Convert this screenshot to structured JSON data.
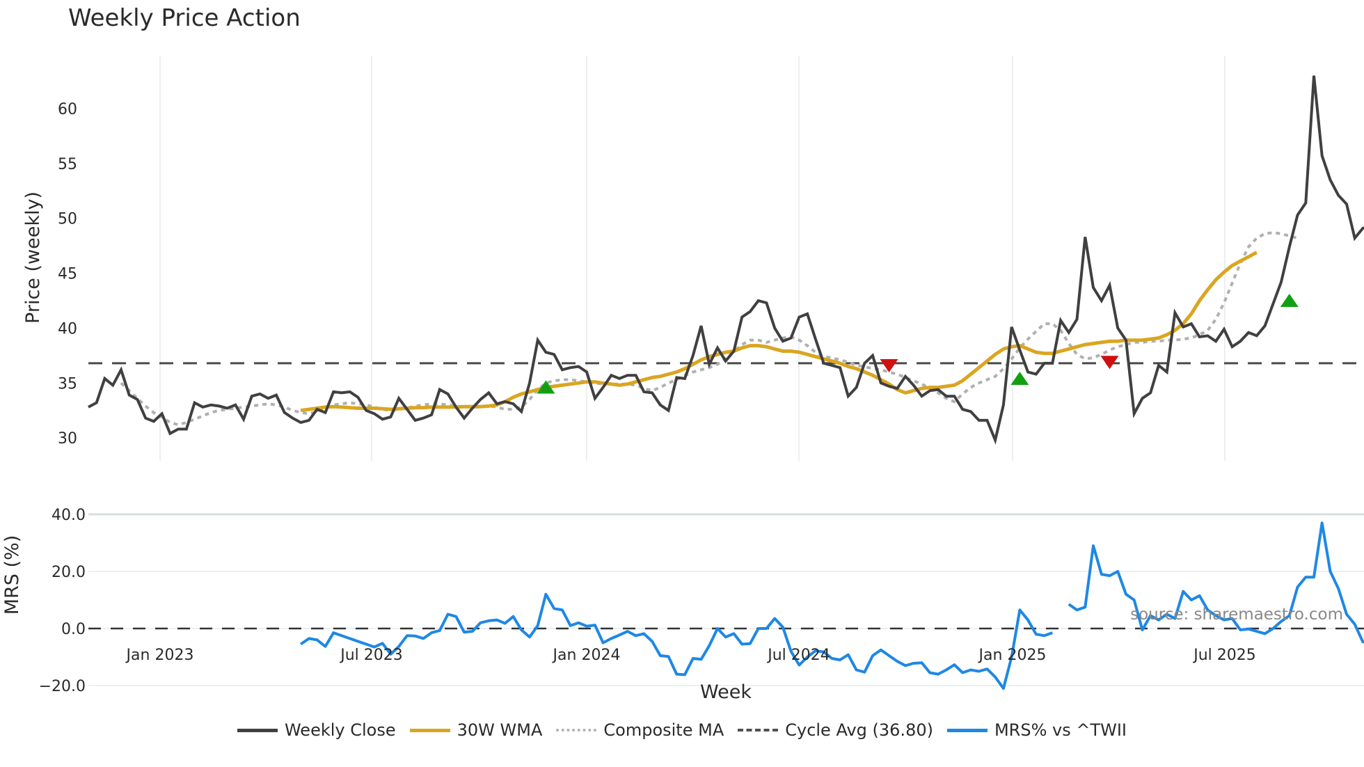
{
  "title": "Weekly Price Action",
  "source": "source: sharemaestro.com",
  "axes": {
    "price_ylabel": "Price (weekly)",
    "mrs_ylabel": "MRS (%)",
    "xlabel": "Week",
    "price_yticks": [
      "30",
      "35",
      "40",
      "45",
      "50",
      "55",
      "60"
    ],
    "mrs_yticks": [
      "−20.0",
      "0.0",
      "20.0",
      "40.0"
    ],
    "xticks": [
      "Jan 2023",
      "Jul 2023",
      "Jan 2024",
      "Jul 2024",
      "Jan 2025",
      "Jul 2025"
    ]
  },
  "legend": [
    {
      "label": "Weekly Close",
      "color": "#404040",
      "style": "solid"
    },
    {
      "label": "30W WMA",
      "color": "#DAA520",
      "style": "solid"
    },
    {
      "label": "Composite MA",
      "color": "#B0B0B0",
      "style": "dotted"
    },
    {
      "label": "Cycle Avg (36.80)",
      "color": "#505050",
      "style": "dashed"
    },
    {
      "label": "MRS% vs ^TWII",
      "color": "#1E88E5",
      "style": "solid"
    }
  ],
  "colors": {
    "close": "#404040",
    "wma": "#DAA520",
    "composite": "#B0B0B0",
    "cycle": "#4a4a4a",
    "mrs": "#1E88E5",
    "buy": "#12A012",
    "sell": "#D01010",
    "grid": "#ECEFF2"
  },
  "chart_data": [
    {
      "type": "line",
      "title": "Weekly Price Action",
      "xlabel": "",
      "ylabel": "Price (weekly)",
      "ylim": [
        27.5,
        64.5
      ],
      "x_start": "2022-11-04",
      "x_ticks": [
        "Jan 2023",
        "Jul 2023",
        "Jan 2024",
        "Jul 2024",
        "Jan 2025",
        "Jul 2025"
      ],
      "grid": true,
      "series": [
        {
          "name": "Weekly Close",
          "values": [
            32.8,
            33.2,
            35.4,
            34.8,
            36.2,
            33.9,
            33.5,
            31.8,
            31.5,
            32.2,
            30.4,
            30.8,
            30.8,
            33.2,
            32.8,
            33.0,
            32.9,
            32.7,
            33.0,
            31.7,
            33.8,
            34.0,
            33.6,
            33.9,
            32.3,
            31.8,
            31.4,
            31.6,
            32.6,
            32.3,
            34.2,
            34.1,
            34.2,
            33.7,
            32.5,
            32.2,
            31.7,
            31.9,
            33.6,
            32.6,
            31.6,
            31.8,
            32.1,
            34.4,
            34.0,
            32.8,
            31.8,
            32.7,
            33.5,
            34.1,
            33.1,
            33.3,
            33.1,
            32.4,
            35.0,
            38.9,
            37.8,
            37.6,
            36.2,
            36.4,
            36.5,
            36.0,
            33.6,
            34.6,
            35.7,
            35.4,
            35.7,
            35.7,
            34.2,
            34.1,
            33.0,
            32.5,
            35.5,
            35.4,
            37.5,
            40.2,
            36.7,
            38.2,
            37.0,
            37.9,
            41.0,
            41.5,
            42.5,
            42.3,
            40.0,
            38.8,
            39.1,
            41.0,
            41.3,
            39.0,
            36.8,
            36.6,
            36.4,
            33.8,
            34.6,
            36.8,
            37.5,
            35.0,
            34.7,
            34.5,
            35.6,
            34.8,
            33.8,
            34.3,
            34.4,
            33.8,
            33.8,
            32.6,
            32.4,
            31.6,
            31.6,
            29.8,
            33.0,
            40.1,
            38.0,
            36.0,
            35.8,
            36.8,
            36.8,
            40.7,
            39.6,
            40.8,
            48.3,
            43.7,
            42.5,
            43.9,
            40.0,
            38.9,
            32.2,
            33.6,
            34.1,
            36.6,
            36.0,
            41.4,
            40.1,
            40.4,
            39.2,
            39.3,
            38.8,
            39.9,
            38.3,
            38.8,
            39.6,
            39.3,
            40.2,
            42.2,
            44.2,
            47.4,
            50.3,
            51.4,
            63.0,
            55.7,
            53.5,
            52.1,
            51.3,
            48.2,
            49.1,
            49.2
          ]
        },
        {
          "name": "30W WMA",
          "start_index": 26,
          "values": [
            32.5,
            32.6,
            32.7,
            32.8,
            32.85,
            32.8,
            32.75,
            32.7,
            32.7,
            32.7,
            32.65,
            32.6,
            32.65,
            32.7,
            32.75,
            32.75,
            32.8,
            32.8,
            32.8,
            32.8,
            32.85,
            32.85,
            32.85,
            32.9,
            33.0,
            33.3,
            33.7,
            34.0,
            34.2,
            34.4,
            34.6,
            34.7,
            34.8,
            34.9,
            35.0,
            35.1,
            35.1,
            35.0,
            34.9,
            34.8,
            34.9,
            35.1,
            35.3,
            35.5,
            35.6,
            35.8,
            36.0,
            36.3,
            36.7,
            37.1,
            37.4,
            37.6,
            37.8,
            37.9,
            38.2,
            38.4,
            38.4,
            38.3,
            38.1,
            37.9,
            37.9,
            37.8,
            37.6,
            37.4,
            37.2,
            37.0,
            36.8,
            36.5,
            36.3,
            36.0,
            35.7,
            35.3,
            34.9,
            34.4,
            34.1,
            34.3,
            34.5,
            34.6,
            34.6,
            34.7,
            34.8,
            35.2,
            35.8,
            36.4,
            37.0,
            37.6,
            38.1,
            38.3,
            38.4,
            38.1,
            37.8,
            37.7,
            37.7,
            37.9,
            38.1,
            38.3,
            38.5,
            38.6,
            38.7,
            38.8,
            38.8,
            38.9,
            38.9,
            38.9,
            39.0,
            39.1,
            39.4,
            39.8,
            40.4,
            41.3,
            42.5,
            43.5,
            44.4,
            45.1,
            45.7,
            46.1,
            46.5,
            46.9
          ]
        },
        {
          "name": "Composite MA",
          "start_index": 4,
          "values": [
            35.0,
            34.3,
            33.6,
            32.9,
            32.3,
            31.9,
            31.4,
            31.2,
            31.4,
            31.7,
            32.0,
            32.3,
            32.5,
            32.6,
            32.7,
            32.8,
            32.9,
            33.0,
            33.1,
            33.0,
            32.8,
            32.5,
            32.3,
            32.2,
            32.4,
            32.7,
            33.0,
            33.1,
            33.2,
            33.1,
            33.0,
            32.8,
            32.6,
            32.5,
            32.6,
            32.7,
            32.9,
            33.0,
            33.1,
            33.1,
            33.0,
            32.9,
            32.8,
            32.8,
            32.8,
            32.9,
            32.8,
            32.6,
            32.6,
            32.8,
            33.5,
            34.4,
            35.0,
            35.2,
            35.3,
            35.3,
            35.2,
            35.1,
            35.0,
            34.9,
            34.9,
            34.9,
            34.9,
            34.8,
            34.5,
            34.3,
            34.6,
            35.0,
            35.3,
            35.7,
            36.0,
            36.2,
            36.4,
            36.7,
            37.2,
            37.9,
            38.5,
            38.9,
            38.9,
            38.7,
            38.9,
            39.1,
            39.2,
            38.9,
            38.4,
            37.8,
            37.4,
            37.3,
            37.1,
            36.9,
            36.6,
            36.5,
            36.3,
            36.2,
            36.0,
            35.8,
            35.5,
            35.2,
            34.9,
            34.5,
            34.1,
            33.6,
            33.3,
            34.0,
            34.6,
            35.0,
            35.3,
            35.6,
            36.3,
            37.2,
            38.2,
            39.0,
            39.7,
            40.4,
            40.4,
            39.8,
            38.6,
            37.6,
            37.2,
            37.3,
            37.6,
            38.0,
            38.3,
            38.5,
            38.7,
            38.7,
            38.8,
            38.8,
            38.9,
            38.9,
            39.0,
            39.1,
            39.4,
            39.8,
            40.8,
            42.3,
            44.1,
            45.9,
            47.4,
            48.2,
            48.6,
            48.7,
            48.6,
            48.4,
            48.2
          ]
        },
        {
          "name": "Cycle Avg (36.80)",
          "constant": 36.8
        }
      ],
      "markers": [
        {
          "type": "buy",
          "index": 56,
          "value": 34.6
        },
        {
          "type": "sell",
          "index": 98,
          "value": 36.6
        },
        {
          "type": "buy",
          "index": 114,
          "value": 35.4
        },
        {
          "type": "sell",
          "index": 125,
          "value": 36.9
        },
        {
          "type": "buy",
          "index": 147,
          "value": 42.5
        }
      ]
    },
    {
      "type": "line",
      "title": "",
      "xlabel": "Week",
      "ylabel": "MRS (%)",
      "ylim": [
        -23,
        45
      ],
      "hline": 0,
      "series": [
        {
          "name": "MRS% vs ^TWII",
          "start_index": 26,
          "values": [
            -5.5,
            -3.5,
            -4.0,
            -6.3,
            -1.5,
            -2.5,
            -3.5,
            -4.5,
            -5.5,
            -6.5,
            -5.2,
            -9.0,
            -6.3,
            -2.5,
            -2.6,
            -3.5,
            -1.5,
            -0.7,
            5.0,
            4.2,
            -1.3,
            -1.0,
            2.0,
            2.7,
            3.0,
            1.8,
            4.2,
            -0.5,
            -3.0,
            1.0,
            12.0,
            7.0,
            6.5,
            1.0,
            2.0,
            0.8,
            1.2,
            -5.0,
            -3.5,
            -2.3,
            -1.0,
            -2.5,
            -1.8,
            -4.5,
            -9.5,
            -9.8,
            -16.0,
            -16.2,
            -10.5,
            -10.8,
            -6.0,
            0.0,
            -3.0,
            -1.8,
            -5.5,
            -5.3,
            0.0,
            0.0,
            3.5,
            0.5,
            -8.0,
            -12.8,
            -10.0,
            -7.8,
            -8.2,
            -10.5,
            -11.0,
            -9.2,
            -14.5,
            -15.3,
            -9.5,
            -7.5,
            -9.5,
            -11.5,
            -13.0,
            -12.2,
            -12.0,
            -15.5,
            -16.0,
            -14.5,
            -12.7,
            -15.5,
            -14.5,
            -15.0,
            -14.2,
            -17.0,
            -21.0,
            -10.0,
            6.5,
            3.0,
            -2.0,
            -2.5,
            -1.5,
            null,
            8.5,
            6.5,
            7.5,
            29.0,
            19.0,
            18.5,
            20.0,
            12.0,
            10.0,
            -0.5,
            4.5,
            3.0,
            5.0,
            3.5,
            13.0,
            10.0,
            11.5,
            6.5,
            4.5,
            3.0,
            3.5,
            -0.5,
            -0.2,
            -1.0,
            -1.8,
            0.0,
            2.5,
            4.5,
            14.5,
            18.0,
            18.0,
            37.0,
            20.0,
            14.0,
            5.0,
            1.5,
            -4.7,
            -4.5,
            -5.0
          ]
        }
      ]
    }
  ]
}
